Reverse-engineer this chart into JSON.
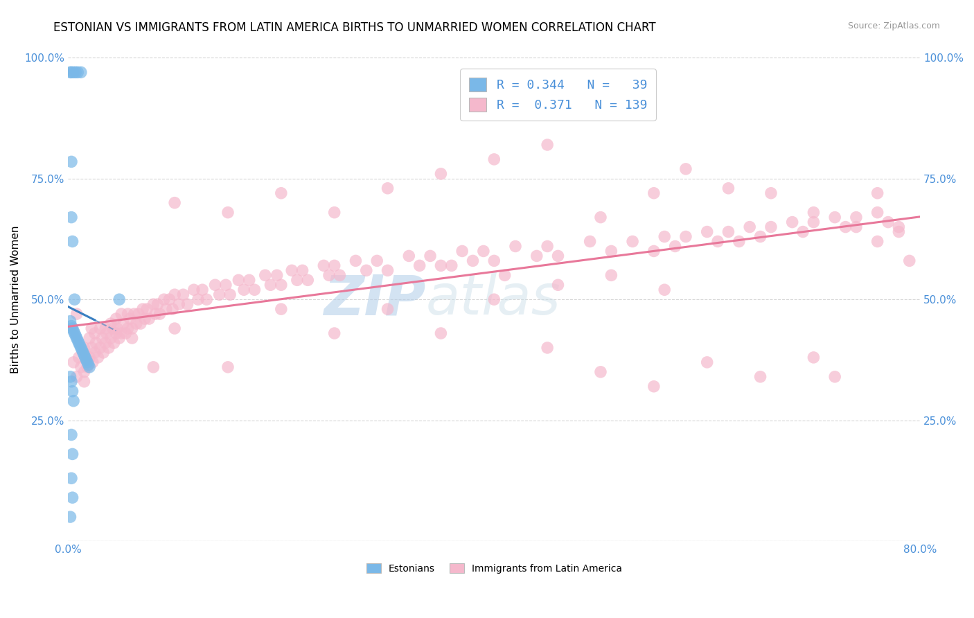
{
  "title": "ESTONIAN VS IMMIGRANTS FROM LATIN AMERICA BIRTHS TO UNMARRIED WOMEN CORRELATION CHART",
  "source": "Source: ZipAtlas.com",
  "ylabel": "Births to Unmarried Women",
  "xlim": [
    0.0,
    0.8
  ],
  "ylim": [
    0.0,
    1.0
  ],
  "xticks": [
    0.0,
    0.1,
    0.2,
    0.3,
    0.4,
    0.5,
    0.6,
    0.7,
    0.8
  ],
  "xticklabels": [
    "0.0%",
    "",
    "",
    "",
    "",
    "",
    "",
    "",
    "80.0%"
  ],
  "yticks_left": [
    0.0,
    0.25,
    0.5,
    0.75,
    1.0
  ],
  "yticklabels_left": [
    "",
    "25.0%",
    "50.0%",
    "75.0%",
    "100.0%"
  ],
  "yticks_right": [
    0.25,
    0.5,
    0.75,
    1.0
  ],
  "yticklabels_right": [
    "25.0%",
    "50.0%",
    "75.0%",
    "100.0%"
  ],
  "blue_color": "#7ab8e8",
  "pink_color": "#f5b8cc",
  "trend_blue": "#3a7fc1",
  "trend_pink": "#e8789a",
  "tick_color": "#4a90d9",
  "watermark_color": "#c8dff0",
  "blue_scatter": [
    [
      0.002,
      0.97
    ],
    [
      0.003,
      0.97
    ],
    [
      0.005,
      0.97
    ],
    [
      0.007,
      0.97
    ],
    [
      0.009,
      0.97
    ],
    [
      0.012,
      0.97
    ],
    [
      0.003,
      0.67
    ],
    [
      0.004,
      0.62
    ],
    [
      0.006,
      0.5
    ],
    [
      0.002,
      0.455
    ],
    [
      0.003,
      0.445
    ],
    [
      0.004,
      0.44
    ],
    [
      0.005,
      0.435
    ],
    [
      0.006,
      0.43
    ],
    [
      0.007,
      0.425
    ],
    [
      0.008,
      0.42
    ],
    [
      0.009,
      0.415
    ],
    [
      0.01,
      0.41
    ],
    [
      0.011,
      0.405
    ],
    [
      0.012,
      0.4
    ],
    [
      0.013,
      0.395
    ],
    [
      0.014,
      0.39
    ],
    [
      0.015,
      0.385
    ],
    [
      0.016,
      0.38
    ],
    [
      0.017,
      0.375
    ],
    [
      0.018,
      0.37
    ],
    [
      0.019,
      0.365
    ],
    [
      0.02,
      0.36
    ],
    [
      0.002,
      0.34
    ],
    [
      0.003,
      0.33
    ],
    [
      0.004,
      0.31
    ],
    [
      0.005,
      0.29
    ],
    [
      0.003,
      0.22
    ],
    [
      0.004,
      0.18
    ],
    [
      0.003,
      0.13
    ],
    [
      0.004,
      0.09
    ],
    [
      0.002,
      0.05
    ],
    [
      0.003,
      0.785
    ],
    [
      0.048,
      0.5
    ]
  ],
  "pink_scatter": [
    [
      0.005,
      0.37
    ],
    [
      0.008,
      0.34
    ],
    [
      0.01,
      0.38
    ],
    [
      0.012,
      0.36
    ],
    [
      0.015,
      0.4
    ],
    [
      0.015,
      0.35
    ],
    [
      0.016,
      0.38
    ],
    [
      0.018,
      0.36
    ],
    [
      0.02,
      0.42
    ],
    [
      0.02,
      0.38
    ],
    [
      0.022,
      0.4
    ],
    [
      0.023,
      0.37
    ],
    [
      0.025,
      0.43
    ],
    [
      0.025,
      0.39
    ],
    [
      0.026,
      0.41
    ],
    [
      0.028,
      0.38
    ],
    [
      0.03,
      0.44
    ],
    [
      0.03,
      0.4
    ],
    [
      0.032,
      0.42
    ],
    [
      0.033,
      0.39
    ],
    [
      0.035,
      0.44
    ],
    [
      0.035,
      0.41
    ],
    [
      0.036,
      0.43
    ],
    [
      0.038,
      0.4
    ],
    [
      0.04,
      0.45
    ],
    [
      0.04,
      0.42
    ],
    [
      0.042,
      0.44
    ],
    [
      0.043,
      0.41
    ],
    [
      0.045,
      0.46
    ],
    [
      0.045,
      0.43
    ],
    [
      0.046,
      0.44
    ],
    [
      0.048,
      0.42
    ],
    [
      0.05,
      0.47
    ],
    [
      0.05,
      0.43
    ],
    [
      0.052,
      0.45
    ],
    [
      0.054,
      0.43
    ],
    [
      0.056,
      0.47
    ],
    [
      0.056,
      0.44
    ],
    [
      0.058,
      0.46
    ],
    [
      0.06,
      0.44
    ],
    [
      0.062,
      0.47
    ],
    [
      0.064,
      0.45
    ],
    [
      0.066,
      0.47
    ],
    [
      0.068,
      0.45
    ],
    [
      0.07,
      0.48
    ],
    [
      0.072,
      0.46
    ],
    [
      0.074,
      0.48
    ],
    [
      0.076,
      0.46
    ],
    [
      0.08,
      0.49
    ],
    [
      0.082,
      0.47
    ],
    [
      0.084,
      0.49
    ],
    [
      0.086,
      0.47
    ],
    [
      0.09,
      0.5
    ],
    [
      0.092,
      0.48
    ],
    [
      0.095,
      0.5
    ],
    [
      0.098,
      0.48
    ],
    [
      0.1,
      0.51
    ],
    [
      0.104,
      0.49
    ],
    [
      0.108,
      0.51
    ],
    [
      0.112,
      0.49
    ],
    [
      0.118,
      0.52
    ],
    [
      0.122,
      0.5
    ],
    [
      0.126,
      0.52
    ],
    [
      0.13,
      0.5
    ],
    [
      0.138,
      0.53
    ],
    [
      0.142,
      0.51
    ],
    [
      0.148,
      0.53
    ],
    [
      0.152,
      0.51
    ],
    [
      0.16,
      0.54
    ],
    [
      0.165,
      0.52
    ],
    [
      0.17,
      0.54
    ],
    [
      0.175,
      0.52
    ],
    [
      0.185,
      0.55
    ],
    [
      0.19,
      0.53
    ],
    [
      0.196,
      0.55
    ],
    [
      0.2,
      0.53
    ],
    [
      0.21,
      0.56
    ],
    [
      0.215,
      0.54
    ],
    [
      0.22,
      0.56
    ],
    [
      0.225,
      0.54
    ],
    [
      0.24,
      0.57
    ],
    [
      0.245,
      0.55
    ],
    [
      0.25,
      0.57
    ],
    [
      0.255,
      0.55
    ],
    [
      0.27,
      0.58
    ],
    [
      0.28,
      0.56
    ],
    [
      0.29,
      0.58
    ],
    [
      0.3,
      0.56
    ],
    [
      0.32,
      0.59
    ],
    [
      0.33,
      0.57
    ],
    [
      0.34,
      0.59
    ],
    [
      0.35,
      0.57
    ],
    [
      0.37,
      0.6
    ],
    [
      0.38,
      0.58
    ],
    [
      0.39,
      0.6
    ],
    [
      0.4,
      0.58
    ],
    [
      0.42,
      0.61
    ],
    [
      0.44,
      0.59
    ],
    [
      0.45,
      0.61
    ],
    [
      0.46,
      0.59
    ],
    [
      0.49,
      0.62
    ],
    [
      0.51,
      0.6
    ],
    [
      0.53,
      0.62
    ],
    [
      0.55,
      0.6
    ],
    [
      0.56,
      0.63
    ],
    [
      0.57,
      0.61
    ],
    [
      0.58,
      0.63
    ],
    [
      0.6,
      0.64
    ],
    [
      0.61,
      0.62
    ],
    [
      0.62,
      0.64
    ],
    [
      0.63,
      0.62
    ],
    [
      0.64,
      0.65
    ],
    [
      0.65,
      0.63
    ],
    [
      0.66,
      0.65
    ],
    [
      0.68,
      0.66
    ],
    [
      0.69,
      0.64
    ],
    [
      0.7,
      0.66
    ],
    [
      0.72,
      0.67
    ],
    [
      0.73,
      0.65
    ],
    [
      0.74,
      0.67
    ],
    [
      0.76,
      0.68
    ],
    [
      0.77,
      0.66
    ],
    [
      0.78,
      0.64
    ],
    [
      0.008,
      0.47
    ],
    [
      0.015,
      0.33
    ],
    [
      0.022,
      0.44
    ],
    [
      0.06,
      0.42
    ],
    [
      0.08,
      0.36
    ],
    [
      0.1,
      0.44
    ],
    [
      0.15,
      0.36
    ],
    [
      0.2,
      0.48
    ],
    [
      0.25,
      0.43
    ],
    [
      0.3,
      0.48
    ],
    [
      0.35,
      0.43
    ],
    [
      0.4,
      0.5
    ],
    [
      0.45,
      0.4
    ],
    [
      0.5,
      0.35
    ],
    [
      0.55,
      0.32
    ],
    [
      0.6,
      0.37
    ],
    [
      0.65,
      0.34
    ],
    [
      0.7,
      0.38
    ],
    [
      0.72,
      0.34
    ],
    [
      0.76,
      0.62
    ],
    [
      0.79,
      0.58
    ],
    [
      0.1,
      0.7
    ],
    [
      0.15,
      0.68
    ],
    [
      0.2,
      0.72
    ],
    [
      0.25,
      0.68
    ],
    [
      0.3,
      0.73
    ],
    [
      0.35,
      0.76
    ],
    [
      0.4,
      0.79
    ],
    [
      0.45,
      0.82
    ],
    [
      0.5,
      0.67
    ],
    [
      0.55,
      0.72
    ],
    [
      0.58,
      0.77
    ],
    [
      0.62,
      0.73
    ],
    [
      0.66,
      0.72
    ],
    [
      0.7,
      0.68
    ],
    [
      0.74,
      0.65
    ],
    [
      0.76,
      0.72
    ],
    [
      0.78,
      0.65
    ],
    [
      0.36,
      0.57
    ],
    [
      0.41,
      0.55
    ],
    [
      0.46,
      0.53
    ],
    [
      0.51,
      0.55
    ],
    [
      0.56,
      0.52
    ]
  ],
  "title_fontsize": 12,
  "label_fontsize": 11,
  "tick_fontsize": 11,
  "legend_fontsize": 13
}
